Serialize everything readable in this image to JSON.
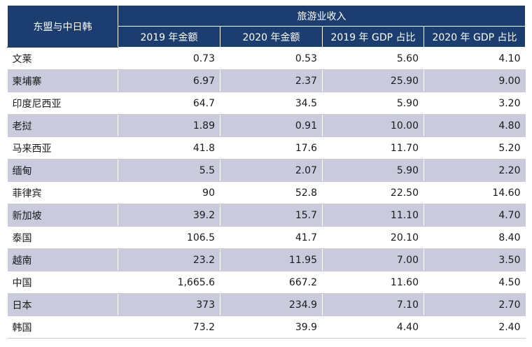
{
  "table": {
    "corner_header": "东盟与中日韩",
    "group_header": "旅游业收入",
    "sub_headers": [
      "2019 年金额",
      "2020 年金额",
      "2019 年 GDP 占比",
      "2020 年 GDP 占比"
    ],
    "rows": [
      {
        "name": "文莱",
        "v2019": "0.73",
        "v2020": "0.53",
        "g2019": "5.60",
        "g2020": "4.10"
      },
      {
        "name": "柬埔寨",
        "v2019": "6.97",
        "v2020": "2.37",
        "g2019": "25.90",
        "g2020": "9.00"
      },
      {
        "name": "印度尼西亚",
        "v2019": "64.7",
        "v2020": "34.5",
        "g2019": "5.90",
        "g2020": "3.20"
      },
      {
        "name": "老挝",
        "v2019": "1.89",
        "v2020": "0.91",
        "g2019": "10.00",
        "g2020": "4.80"
      },
      {
        "name": "马来西亚",
        "v2019": "41.8",
        "v2020": "17.6",
        "g2019": "11.70",
        "g2020": "5.20"
      },
      {
        "name": "缅甸",
        "v2019": "5.5",
        "v2020": "2.07",
        "g2019": "5.90",
        "g2020": "2.20"
      },
      {
        "name": "菲律宾",
        "v2019": "90",
        "v2020": "52.8",
        "g2019": "22.50",
        "g2020": "14.60"
      },
      {
        "name": "新加坡",
        "v2019": "39.2",
        "v2020": "15.7",
        "g2019": "11.10",
        "g2020": "4.70"
      },
      {
        "name": "泰国",
        "v2019": "106.5",
        "v2020": "41.7",
        "g2019": "20.10",
        "g2020": "8.40"
      },
      {
        "name": "越南",
        "v2019": "23.2",
        "v2020": "11.95",
        "g2019": "7.00",
        "g2020": "3.50"
      },
      {
        "name": "中国",
        "v2019": "1,665.6",
        "v2020": "667.2",
        "g2019": "11.60",
        "g2020": "4.50"
      },
      {
        "name": "日本",
        "v2019": "373",
        "v2020": "234.9",
        "g2019": "7.10",
        "g2020": "2.70"
      },
      {
        "name": "韩国",
        "v2019": "73.2",
        "v2020": "39.9",
        "g2019": "4.40",
        "g2020": "2.40"
      }
    ]
  }
}
